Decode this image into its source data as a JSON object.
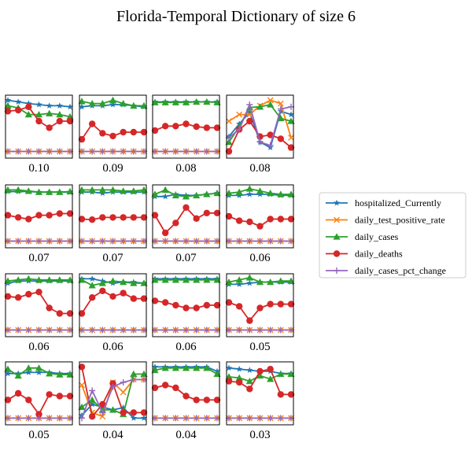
{
  "figure": {
    "title": "Florida-Temporal Dictionary of size 6"
  },
  "colors": {
    "hospitalized_Currently": "#1f77b4",
    "daily_test_positive_rate": "#ff7f0e",
    "daily_cases": "#2ca02c",
    "daily_deaths": "#d62728",
    "daily_cases_pct_change": "#9467bd"
  },
  "legend": {
    "placement": "right",
    "entries": [
      {
        "name": "hospitalized_Currently",
        "marker": "star"
      },
      {
        "name": "daily_test_positive_rate",
        "marker": "x"
      },
      {
        "name": "daily_cases",
        "marker": "triangle"
      },
      {
        "name": "daily_deaths",
        "marker": "circle"
      },
      {
        "name": "daily_cases_pct_change",
        "marker": "plus"
      }
    ]
  },
  "chart_data": {
    "type": "line",
    "layout": "4x4 small multiples",
    "x": [
      0,
      1,
      2,
      3,
      4,
      5,
      6
    ],
    "ylim": [
      0,
      1
    ],
    "ticks": "none",
    "series_names": [
      "hospitalized_Currently",
      "daily_test_positive_rate",
      "daily_cases",
      "daily_deaths",
      "daily_cases_pct_change"
    ],
    "panels": [
      {
        "caption": "0.10",
        "series": {
          "hospitalized_Currently": [
            0.98,
            0.95,
            0.92,
            0.9,
            0.88,
            0.88,
            0.86
          ],
          "daily_test_positive_rate": [
            0.05,
            0.05,
            0.05,
            0.05,
            0.05,
            0.05,
            0.05
          ],
          "daily_cases": [
            0.88,
            0.84,
            0.72,
            0.72,
            0.74,
            0.72,
            0.68
          ],
          "daily_deaths": [
            0.78,
            0.8,
            0.86,
            0.6,
            0.48,
            0.6,
            0.6
          ],
          "daily_cases_pct_change": [
            0.05,
            0.05,
            0.05,
            0.05,
            0.05,
            0.05,
            0.05
          ]
        }
      },
      {
        "caption": "0.09",
        "series": {
          "hospitalized_Currently": [
            0.86,
            0.88,
            0.88,
            0.9,
            0.9,
            0.88,
            0.86
          ],
          "daily_test_positive_rate": [
            0.05,
            0.05,
            0.05,
            0.05,
            0.05,
            0.05,
            0.05
          ],
          "daily_cases": [
            0.96,
            0.92,
            0.92,
            0.98,
            0.92,
            0.88,
            0.88
          ],
          "daily_deaths": [
            0.27,
            0.55,
            0.38,
            0.33,
            0.4,
            0.4,
            0.4
          ],
          "daily_cases_pct_change": [
            0.05,
            0.05,
            0.05,
            0.05,
            0.05,
            0.05,
            0.05
          ]
        }
      },
      {
        "caption": "0.08",
        "series": {
          "hospitalized_Currently": [
            0.95,
            0.95,
            0.95,
            0.95,
            0.95,
            0.95,
            0.95
          ],
          "daily_test_positive_rate": [
            0.05,
            0.05,
            0.05,
            0.05,
            0.05,
            0.05,
            0.05
          ],
          "daily_cases": [
            0.94,
            0.94,
            0.94,
            0.94,
            0.95,
            0.95,
            0.94
          ],
          "daily_deaths": [
            0.43,
            0.51,
            0.51,
            0.55,
            0.5,
            0.48,
            0.48
          ],
          "daily_cases_pct_change": [
            0.05,
            0.05,
            0.05,
            0.05,
            0.05,
            0.05,
            0.05
          ]
        }
      },
      {
        "caption": "0.08",
        "series": {
          "hospitalized_Currently": [
            0.32,
            0.55,
            0.76,
            0.22,
            0.12,
            0.78,
            0.72
          ],
          "daily_test_positive_rate": [
            0.6,
            0.72,
            0.72,
            0.88,
            0.98,
            0.92,
            0.3
          ],
          "daily_cases": [
            0.22,
            0.5,
            0.85,
            0.86,
            0.9,
            0.65,
            0.6
          ],
          "daily_deaths": [
            0.05,
            0.45,
            0.6,
            0.32,
            0.35,
            0.28,
            0.12
          ],
          "daily_cases_pct_change": [
            0.3,
            0.45,
            0.9,
            0.22,
            0.16,
            0.82,
            0.86
          ]
        }
      },
      {
        "caption": "0.07",
        "series": {
          "hospitalized_Currently": [
            0.95,
            0.95,
            0.95,
            0.94,
            0.94,
            0.94,
            0.94
          ],
          "daily_test_positive_rate": [
            0.05,
            0.05,
            0.05,
            0.05,
            0.05,
            0.05,
            0.05
          ],
          "daily_cases": [
            0.98,
            0.98,
            0.96,
            0.94,
            0.94,
            0.94,
            0.95
          ],
          "daily_deaths": [
            0.52,
            0.48,
            0.45,
            0.52,
            0.52,
            0.55,
            0.55
          ],
          "daily_cases_pct_change": [
            0.05,
            0.05,
            0.05,
            0.05,
            0.05,
            0.05,
            0.05
          ]
        }
      },
      {
        "caption": "0.07",
        "series": {
          "hospitalized_Currently": [
            0.94,
            0.94,
            0.92,
            0.94,
            0.94,
            0.94,
            0.94
          ],
          "daily_test_positive_rate": [
            0.05,
            0.05,
            0.05,
            0.05,
            0.05,
            0.05,
            0.05
          ],
          "daily_cases": [
            0.98,
            0.98,
            0.98,
            0.98,
            0.96,
            0.96,
            0.98
          ],
          "daily_deaths": [
            0.45,
            0.44,
            0.48,
            0.48,
            0.48,
            0.48,
            0.48
          ],
          "daily_cases_pct_change": [
            0.05,
            0.05,
            0.05,
            0.05,
            0.05,
            0.05,
            0.05
          ]
        }
      },
      {
        "caption": "0.07",
        "series": {
          "hospitalized_Currently": [
            0.86,
            0.86,
            0.9,
            0.88,
            0.88,
            0.9,
            0.92
          ],
          "daily_test_positive_rate": [
            0.05,
            0.05,
            0.05,
            0.05,
            0.05,
            0.05,
            0.05
          ],
          "daily_cases": [
            0.9,
            0.98,
            0.88,
            0.86,
            0.88,
            0.9,
            0.92
          ],
          "daily_deaths": [
            0.52,
            0.2,
            0.38,
            0.66,
            0.46,
            0.56,
            0.56
          ],
          "daily_cases_pct_change": [
            0.05,
            0.05,
            0.05,
            0.05,
            0.05,
            0.05,
            0.05
          ]
        }
      },
      {
        "caption": "0.06",
        "series": {
          "hospitalized_Currently": [
            0.88,
            0.88,
            0.9,
            0.9,
            0.9,
            0.88,
            0.88
          ],
          "daily_test_positive_rate": [
            0.05,
            0.05,
            0.05,
            0.05,
            0.05,
            0.05,
            0.05
          ],
          "daily_cases": [
            0.92,
            0.94,
            1.0,
            0.96,
            0.92,
            0.9,
            0.9
          ],
          "daily_deaths": [
            0.5,
            0.42,
            0.4,
            0.32,
            0.45,
            0.45,
            0.45
          ],
          "daily_cases_pct_change": [
            0.05,
            0.05,
            0.05,
            0.05,
            0.05,
            0.05,
            0.05
          ]
        }
      },
      {
        "caption": "0.06",
        "series": {
          "hospitalized_Currently": [
            0.9,
            0.94,
            0.94,
            0.94,
            0.94,
            0.94,
            0.94
          ],
          "daily_test_positive_rate": [
            0.05,
            0.05,
            0.05,
            0.05,
            0.05,
            0.05,
            0.05
          ],
          "daily_cases": [
            0.94,
            0.96,
            0.98,
            0.96,
            0.96,
            0.96,
            0.96
          ],
          "daily_deaths": [
            0.66,
            0.64,
            0.7,
            0.74,
            0.45,
            0.35,
            0.35
          ],
          "daily_cases_pct_change": [
            0.05,
            0.05,
            0.05,
            0.05,
            0.05,
            0.05,
            0.05
          ]
        }
      },
      {
        "caption": "0.06",
        "series": {
          "hospitalized_Currently": [
            0.98,
            0.98,
            0.94,
            0.9,
            0.92,
            0.92,
            0.9
          ],
          "daily_test_positive_rate": [
            0.05,
            0.05,
            0.05,
            0.05,
            0.05,
            0.05,
            0.05
          ],
          "daily_cases": [
            0.96,
            0.86,
            0.9,
            0.94,
            0.92,
            0.9,
            0.9
          ],
          "daily_deaths": [
            0.35,
            0.64,
            0.76,
            0.66,
            0.72,
            0.62,
            0.62
          ],
          "daily_cases_pct_change": [
            0.05,
            0.05,
            0.05,
            0.05,
            0.05,
            0.05,
            0.05
          ]
        }
      },
      {
        "caption": "0.06",
        "series": {
          "hospitalized_Currently": [
            0.98,
            0.98,
            0.98,
            0.98,
            0.98,
            0.98,
            0.98
          ],
          "daily_test_positive_rate": [
            0.05,
            0.05,
            0.05,
            0.05,
            0.05,
            0.05,
            0.05
          ],
          "daily_cases": [
            0.96,
            0.96,
            0.96,
            0.96,
            0.96,
            0.96,
            0.96
          ],
          "daily_deaths": [
            0.58,
            0.55,
            0.5,
            0.45,
            0.45,
            0.5,
            0.5
          ],
          "daily_cases_pct_change": [
            0.05,
            0.05,
            0.05,
            0.05,
            0.05,
            0.05,
            0.05
          ]
        }
      },
      {
        "caption": "0.05",
        "series": {
          "hospitalized_Currently": [
            0.88,
            0.88,
            0.9,
            0.92,
            0.92,
            0.92,
            0.92
          ],
          "daily_test_positive_rate": [
            0.05,
            0.05,
            0.05,
            0.05,
            0.05,
            0.05,
            0.05
          ],
          "daily_cases": [
            0.92,
            0.96,
            1.0,
            0.92,
            0.92,
            0.94,
            0.94
          ],
          "daily_deaths": [
            0.55,
            0.48,
            0.22,
            0.45,
            0.52,
            0.52,
            0.52
          ],
          "daily_cases_pct_change": [
            0.05,
            0.05,
            0.05,
            0.05,
            0.05,
            0.05,
            0.05
          ]
        }
      },
      {
        "caption": "0.05",
        "series": {
          "hospitalized_Currently": [
            0.86,
            0.86,
            0.88,
            0.88,
            0.88,
            0.86,
            0.86
          ],
          "daily_test_positive_rate": [
            0.05,
            0.05,
            0.05,
            0.05,
            0.05,
            0.05,
            0.05
          ],
          "daily_cases": [
            0.94,
            0.82,
            0.96,
            0.96,
            0.86,
            0.84,
            0.84
          ],
          "daily_deaths": [
            0.38,
            0.5,
            0.38,
            0.12,
            0.48,
            0.45,
            0.45
          ],
          "daily_cases_pct_change": [
            0.05,
            0.05,
            0.05,
            0.05,
            0.05,
            0.05,
            0.05
          ]
        }
      },
      {
        "caption": "0.04",
        "series": {
          "hospitalized_Currently": [
            0.1,
            0.3,
            0.25,
            0.2,
            0.24,
            0.05,
            0.05
          ],
          "daily_test_positive_rate": [
            0.65,
            0.15,
            0.08,
            0.7,
            0.52,
            0.75,
            0.75
          ],
          "daily_cases": [
            0.25,
            0.38,
            0.2,
            0.2,
            0.12,
            0.85,
            0.85
          ],
          "daily_deaths": [
            0.98,
            0.08,
            0.3,
            0.68,
            0.15,
            0.15,
            0.15
          ],
          "daily_cases_pct_change": [
            0.05,
            0.55,
            0.15,
            0.62,
            0.7,
            0.75,
            0.75
          ]
        }
      },
      {
        "caption": "0.04",
        "series": {
          "hospitalized_Currently": [
            0.98,
            0.98,
            0.98,
            0.98,
            0.98,
            0.98,
            0.9
          ],
          "daily_test_positive_rate": [
            0.05,
            0.05,
            0.05,
            0.05,
            0.05,
            0.05,
            0.05
          ],
          "daily_cases": [
            0.92,
            0.96,
            0.96,
            0.96,
            0.96,
            0.96,
            0.85
          ],
          "daily_deaths": [
            0.6,
            0.65,
            0.6,
            0.45,
            0.38,
            0.38,
            0.38
          ],
          "daily_cases_pct_change": [
            0.05,
            0.05,
            0.05,
            0.05,
            0.05,
            0.05,
            0.05
          ]
        }
      },
      {
        "caption": "0.03",
        "series": {
          "hospitalized_Currently": [
            0.96,
            0.94,
            0.92,
            0.9,
            0.9,
            0.86,
            0.86
          ],
          "daily_test_positive_rate": [
            0.05,
            0.05,
            0.05,
            0.05,
            0.05,
            0.05,
            0.05
          ],
          "daily_cases": [
            0.8,
            0.78,
            0.72,
            0.82,
            0.76,
            0.85,
            0.85
          ],
          "daily_deaths": [
            0.72,
            0.7,
            0.58,
            0.9,
            0.94,
            0.48,
            0.48
          ],
          "daily_cases_pct_change": [
            0.05,
            0.05,
            0.05,
            0.05,
            0.05,
            0.05,
            0.05
          ]
        }
      }
    ]
  }
}
